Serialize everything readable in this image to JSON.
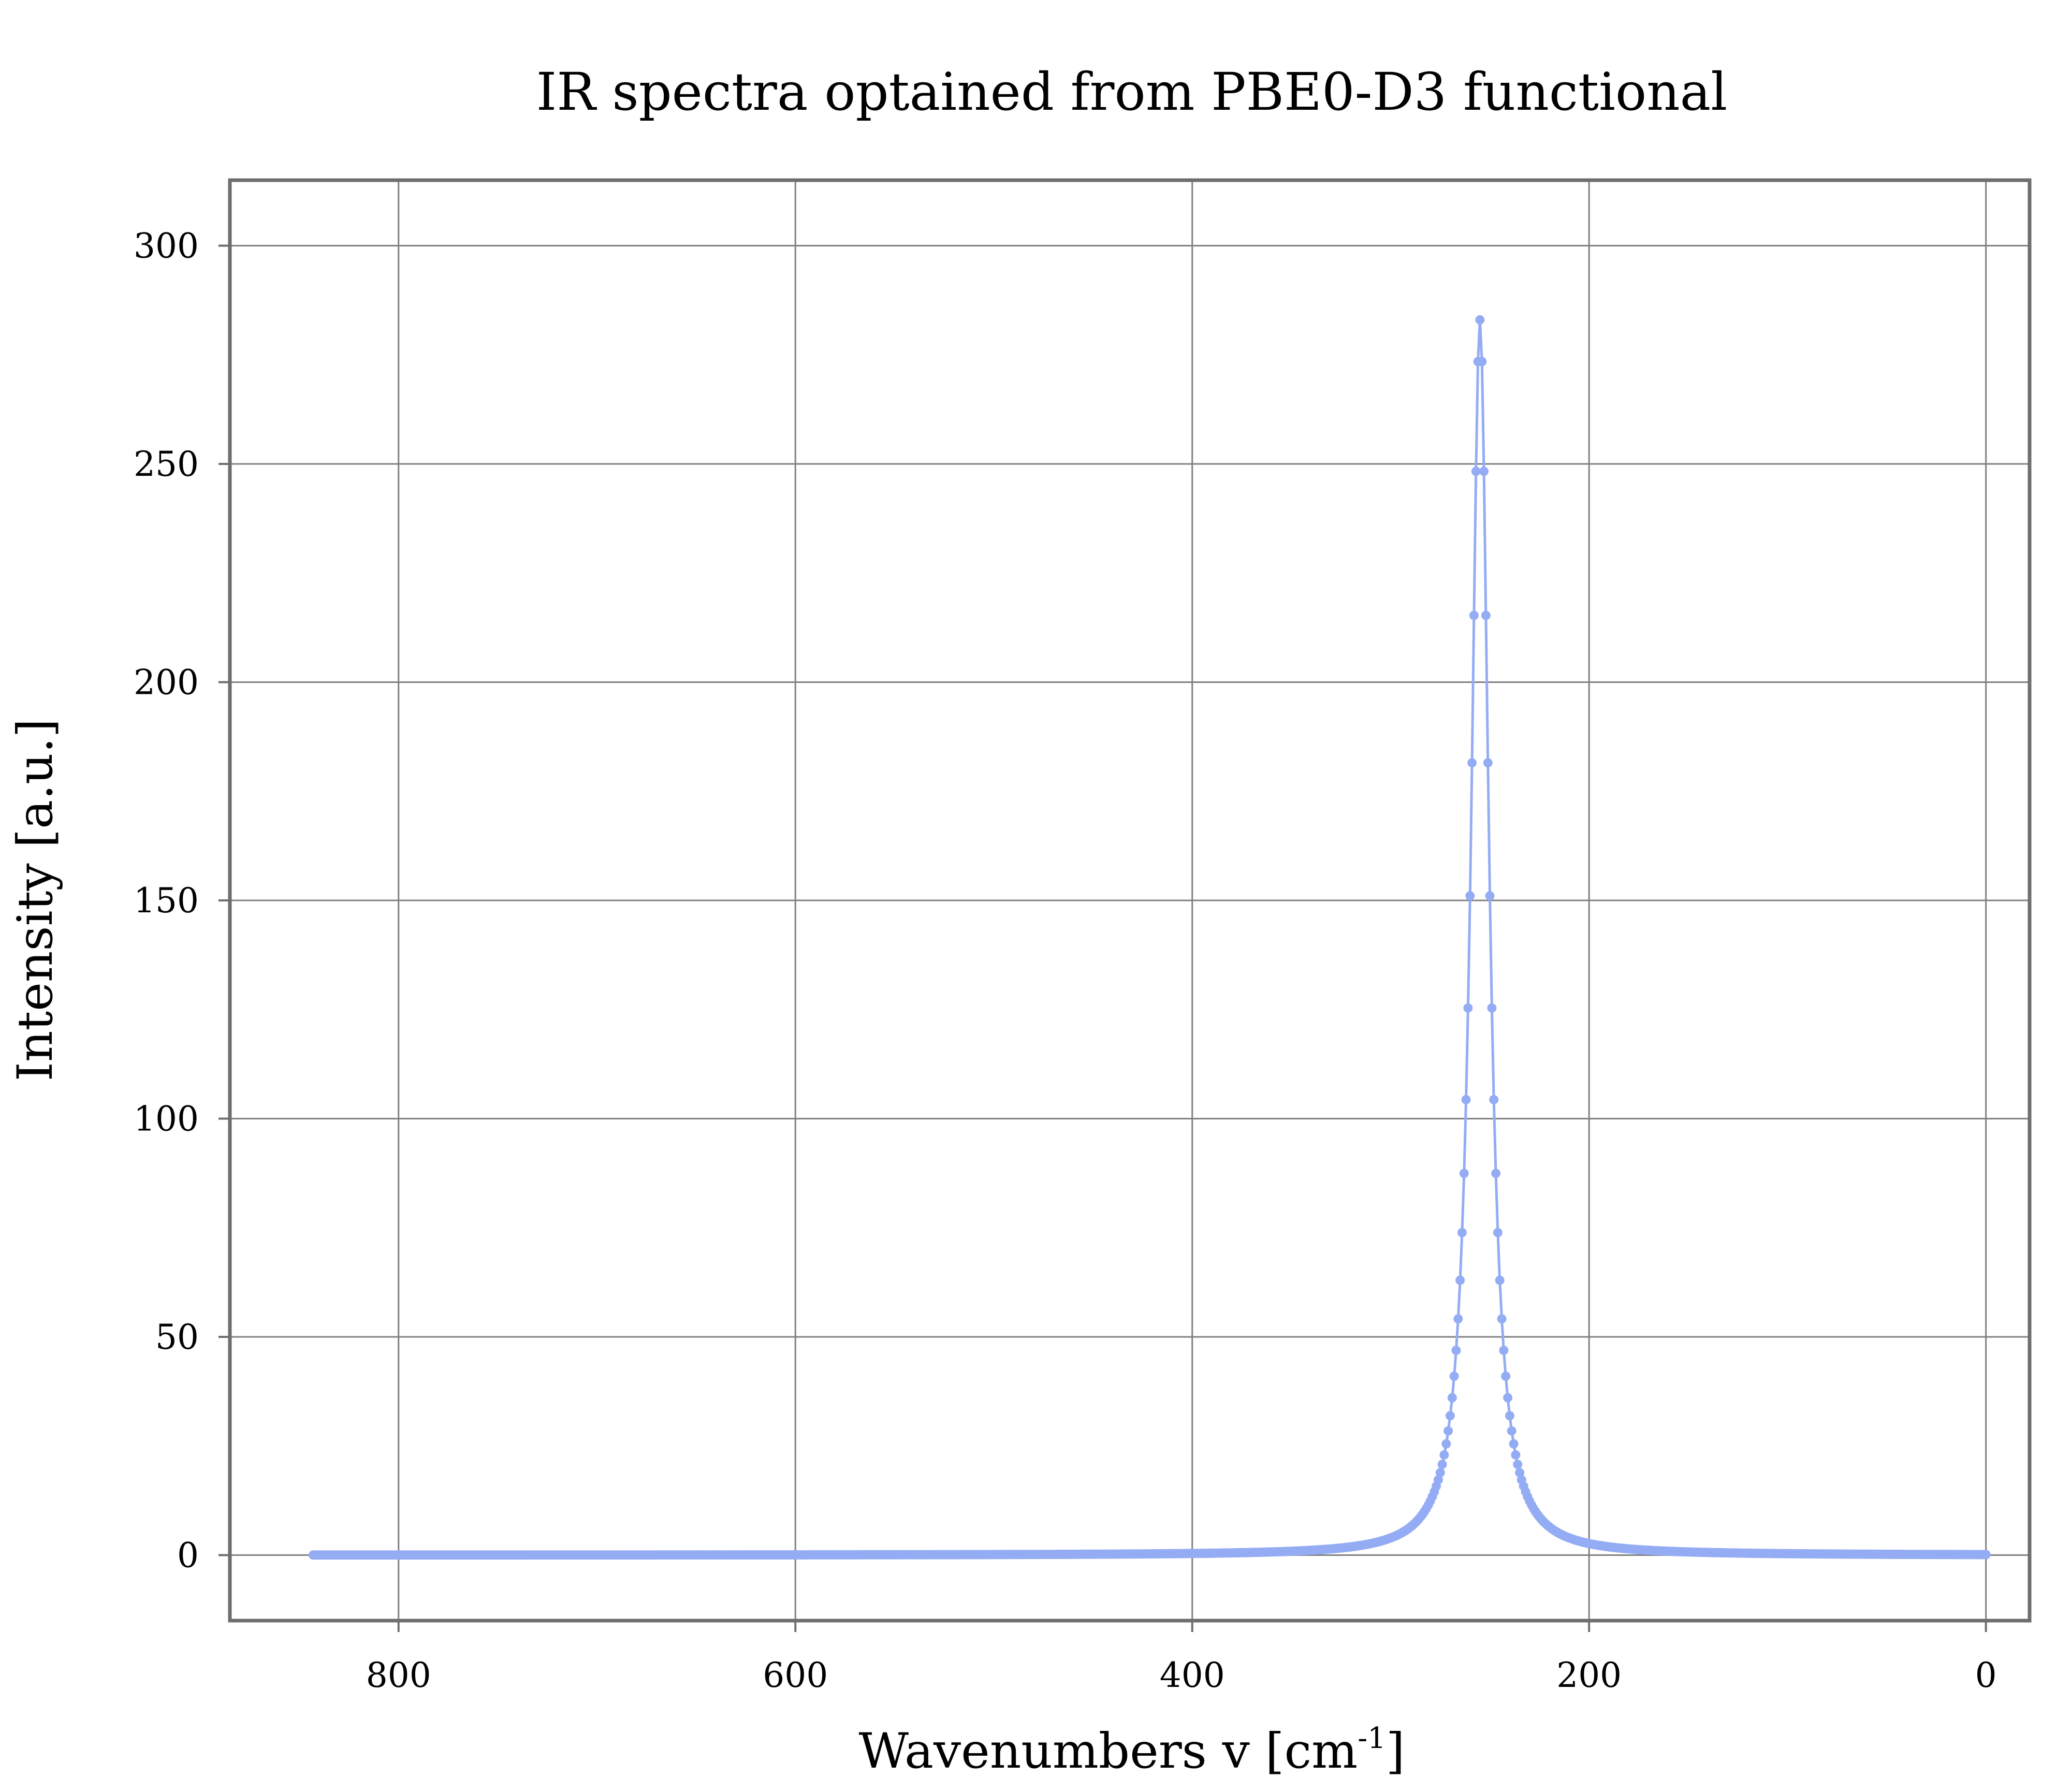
{
  "chart_data": {
    "type": "line",
    "title": "IR spectra optained from PBE0-D3 functional",
    "xlabel": "Wavenumbers v [cm",
    "xlabel_superscript": "-1",
    "xlabel_suffix": "]",
    "ylabel": "Intensity [a.u.]",
    "xlim": [
      885,
      -22
    ],
    "ylim": [
      -15,
      315
    ],
    "x_reversed": true,
    "xticks": [
      800,
      600,
      400,
      200,
      0
    ],
    "yticks": [
      0,
      50,
      100,
      150,
      200,
      250,
      300
    ],
    "xtick_labels": [
      "800",
      "600",
      "400",
      "200",
      "0"
    ],
    "ytick_labels": [
      "0",
      "50",
      "100",
      "150",
      "200",
      "250",
      "300"
    ],
    "grid": true,
    "legend": "none",
    "series_color": "#94acf4",
    "series": [
      {
        "peak_center": 255,
        "peak_height": 283,
        "half_width": 5.35,
        "x_range": [
          843,
          0
        ],
        "x": [
          843,
          750,
          650,
          550,
          450,
          400,
          350,
          320,
          300,
          290,
          285,
          280,
          275,
          272,
          270,
          268,
          266,
          264,
          263,
          262,
          261,
          260,
          259,
          258,
          257,
          256,
          255,
          254,
          253,
          252,
          251,
          250,
          249,
          248,
          247,
          246,
          245,
          244,
          243,
          242,
          241,
          240,
          238,
          236,
          234,
          232,
          230,
          225,
          220,
          210,
          200,
          180,
          150,
          100,
          50,
          0
        ],
        "values": [
          0.1,
          0.13,
          0.19,
          0.29,
          0.6,
          0.85,
          1.6,
          2.87,
          3.8,
          11.5,
          8.7,
          12.3,
          16.9,
          22.3,
          27.1,
          33.3,
          42.1,
          54.3,
          62.3,
          73.4,
          86.5,
          104.1,
          126.3,
          154.3,
          187.0,
          225.6,
          283.0,
          277.0,
          256.3,
          212.6,
          168.2,
          131.1,
          102.6,
          81.2,
          65.3,
          53.4,
          44.2,
          37.2,
          31.6,
          27.1,
          23.6,
          20.5,
          16.0,
          12.6,
          10.3,
          8.5,
          7.1,
          4.8,
          3.4,
          2.0,
          1.35,
          0.7,
          0.32,
          0.15,
          0.08,
          0.06
        ]
      }
    ]
  }
}
